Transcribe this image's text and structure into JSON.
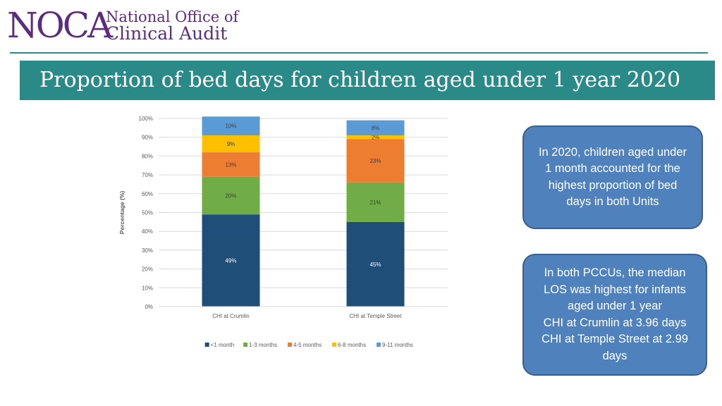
{
  "logo": {
    "mark": "NOCA",
    "line1": "National Office of",
    "line2": "Clinical Audit"
  },
  "title": "Proportion of bed days for children aged under 1 year 2020",
  "callouts": [
    {
      "lines": [
        "In 2020, children aged under",
        "1 month accounted for the",
        "highest proportion of bed",
        "days in both Units"
      ]
    },
    {
      "lines": [
        "In both PCCUs, the median",
        "LOS was highest for infants",
        "aged under 1 year",
        "CHI at Crumlin at 3.96 days",
        "CHI at Temple Street at 2.99",
        "days"
      ]
    }
  ],
  "chart_data": {
    "type": "bar",
    "stacked": true,
    "title": "",
    "xlabel": "",
    "ylabel": "Percentage (%)",
    "ylim": [
      0,
      100
    ],
    "yticks": [
      "0%",
      "10%",
      "20%",
      "30%",
      "40%",
      "50%",
      "60%",
      "70%",
      "80%",
      "90%",
      "100%"
    ],
    "grid": true,
    "legend": "bottom",
    "categories": [
      "CHI at Crumlin",
      "CHI at Temple Street"
    ],
    "series": [
      {
        "name": "<1 month",
        "color": "#1f4e79",
        "values": [
          49,
          45
        ],
        "labels": [
          "49%",
          "45%"
        ]
      },
      {
        "name": "1-3 months",
        "color": "#70ad47",
        "values": [
          20,
          21
        ],
        "labels": [
          "20%",
          "21%"
        ]
      },
      {
        "name": "4-5 months",
        "color": "#ed7d31",
        "values": [
          13,
          23
        ],
        "labels": [
          "13%",
          "23%"
        ]
      },
      {
        "name": "6-8 months",
        "color": "#ffc000",
        "values": [
          9,
          2
        ],
        "labels": [
          "9%",
          "2%"
        ]
      },
      {
        "name": "9-11 months",
        "color": "#5b9bd5",
        "values": [
          10,
          8
        ],
        "labels": [
          "10%",
          "8%"
        ]
      }
    ]
  }
}
